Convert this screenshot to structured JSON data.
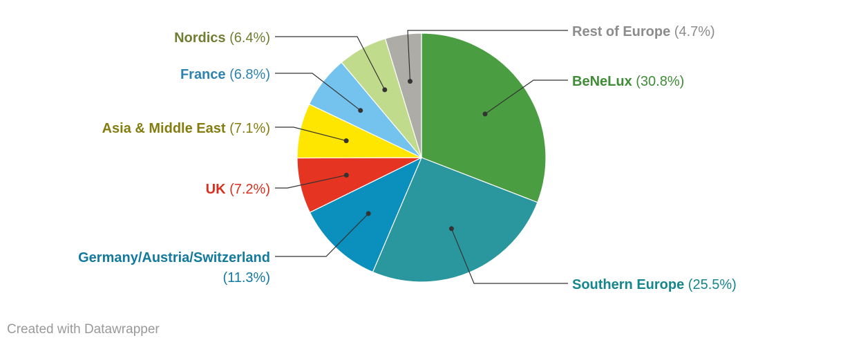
{
  "chart_data": {
    "type": "pie",
    "start_angle_deg": 0,
    "direction": "clockwise",
    "slices": [
      {
        "label": "BeNeLux",
        "value_text": "(30.8%)",
        "value": 30.8,
        "color": "#4a9e41",
        "label_color": "#3f8c36"
      },
      {
        "label": "Southern Europe",
        "value_text": "(25.5%)",
        "value": 25.5,
        "color": "#2a979e",
        "label_color": "#14868c"
      },
      {
        "label": "Germany/Austria/Switzerland",
        "value_text": "(11.3%)",
        "value": 11.3,
        "color": "#0b8fbc",
        "label_color": "#12799f"
      },
      {
        "label": "UK",
        "value_text": "(7.2%)",
        "value": 7.2,
        "color": "#e63422",
        "label_color": "#d8301f"
      },
      {
        "label": "Asia & Middle East",
        "value_text": "(7.1%)",
        "value": 7.1,
        "color": "#ffe600",
        "label_color": "#837c0f"
      },
      {
        "label": "France",
        "value_text": "(6.8%)",
        "value": 6.8,
        "color": "#74c3ee",
        "label_color": "#2d83b0"
      },
      {
        "label": "Nordics",
        "value_text": "(6.4%)",
        "value": 6.4,
        "color": "#c1db8d",
        "label_color": "#6f7e33"
      },
      {
        "label": "Rest of Europe",
        "value_text": "(4.7%)",
        "value": 4.7,
        "color": "#adaca6",
        "label_color": "#8c8c8c"
      }
    ]
  },
  "footer": {
    "credit": "Created with Datawrapper"
  }
}
